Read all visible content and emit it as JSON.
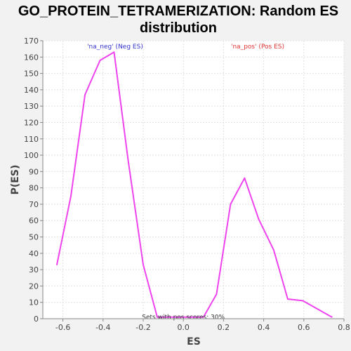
{
  "chart_data": {
    "type": "line",
    "title_line1": "GO_PROTEIN_TETRAMERIZATION: Random ES",
    "title_line2": "distribution",
    "xlabel": "ES",
    "ylabel": "P(ES)",
    "xlim": [
      -0.7,
      0.8
    ],
    "ylim": [
      0,
      170
    ],
    "x_ticks": [
      -0.6,
      -0.4,
      -0.2,
      0.0,
      0.2,
      0.4,
      0.6,
      0.8
    ],
    "y_ticks": [
      0,
      10,
      20,
      30,
      40,
      50,
      60,
      70,
      80,
      90,
      100,
      110,
      120,
      130,
      140,
      150,
      160,
      170
    ],
    "grid": true,
    "series": [
      {
        "color": "#ee44ee",
        "x": [
          -0.63,
          -0.56,
          -0.49,
          -0.415,
          -0.345,
          -0.275,
          -0.2,
          -0.13,
          0.1,
          0.165,
          0.235,
          0.305,
          0.375,
          0.45,
          0.52,
          0.595,
          0.74
        ],
        "y": [
          33,
          75,
          137,
          158,
          163,
          97,
          33,
          1,
          1,
          15,
          70,
          86,
          61,
          42,
          12,
          11,
          1
        ]
      }
    ],
    "annotations": [
      {
        "text": "'na_neg' (Neg ES)",
        "color": "#3333cc",
        "x": -0.34,
        "y": 166.5
      },
      {
        "text": "'na_pos' (Pos ES)",
        "color": "#dd3333",
        "x": 0.37,
        "y": 166.5
      },
      {
        "text": "Sets with pos scores: 30%",
        "color": "#333333",
        "x": 0.0,
        "y": 1
      }
    ]
  }
}
